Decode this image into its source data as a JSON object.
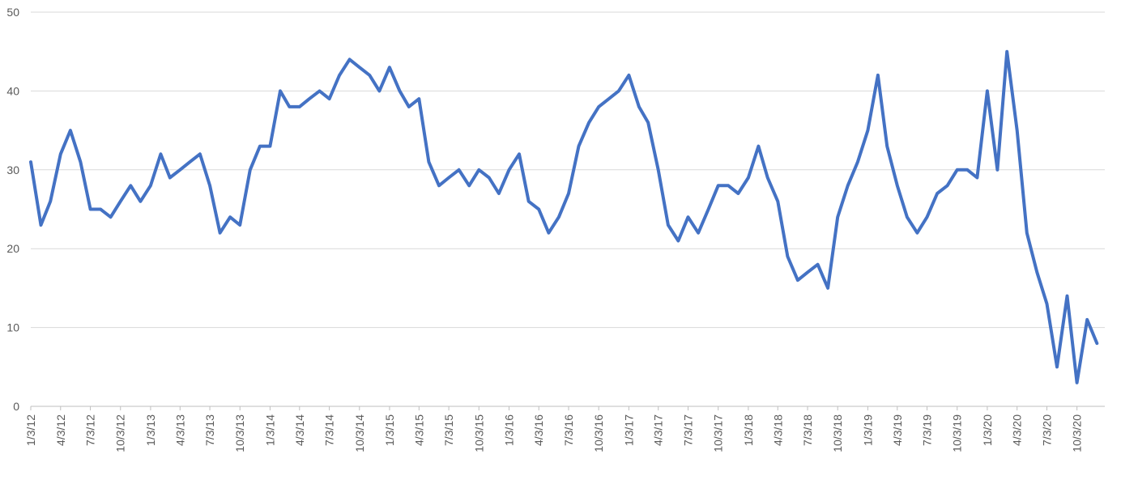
{
  "chart_data": {
    "type": "line",
    "title": "",
    "xlabel": "",
    "ylabel": "",
    "ylim": [
      0,
      50
    ],
    "y_ticks": [
      "0",
      "10",
      "20",
      "30",
      "40",
      "50"
    ],
    "x_ticks": [
      "1/3/12",
      "4/3/12",
      "7/3/12",
      "10/3/12",
      "1/3/13",
      "4/3/13",
      "7/3/13",
      "10/3/13",
      "1/3/14",
      "4/3/14",
      "7/3/14",
      "10/3/14",
      "1/3/15",
      "4/3/15",
      "7/3/15",
      "10/3/15",
      "1/3/16",
      "4/3/16",
      "7/3/16",
      "10/3/16",
      "1/3/17",
      "4/3/17",
      "7/3/17",
      "10/3/17",
      "1/3/18",
      "4/3/18",
      "7/3/18",
      "10/3/18",
      "1/3/19",
      "4/3/19",
      "7/3/19",
      "10/3/19",
      "1/3/20",
      "4/3/20",
      "7/3/20",
      "10/3/20"
    ],
    "grid": true,
    "legend": "none",
    "line_color": "#4472c4",
    "series": [
      {
        "x": [
          "1/3/12",
          "2/3/12",
          "3/3/12",
          "4/3/12",
          "5/3/12",
          "6/3/12",
          "7/3/12",
          "8/3/12",
          "9/3/12",
          "10/3/12",
          "11/3/12",
          "12/3/12",
          "1/3/13",
          "2/3/13",
          "3/3/13",
          "4/3/13",
          "5/3/13",
          "6/3/13",
          "7/3/13",
          "8/3/13",
          "9/3/13",
          "10/3/13",
          "11/3/13",
          "12/3/13",
          "1/3/14",
          "2/3/14",
          "3/3/14",
          "4/3/14",
          "5/3/14",
          "6/3/14",
          "7/3/14",
          "8/3/14",
          "9/3/14",
          "10/3/14",
          "11/3/14",
          "12/3/14",
          "1/3/15",
          "2/3/15",
          "3/3/15",
          "4/3/15",
          "5/3/15",
          "6/3/15",
          "7/3/15",
          "8/3/15",
          "9/3/15",
          "10/3/15",
          "11/3/15",
          "12/3/15",
          "1/3/16",
          "2/3/16",
          "3/3/16",
          "4/3/16",
          "5/3/16",
          "6/3/16",
          "7/3/16",
          "8/3/16",
          "9/3/16",
          "10/3/16",
          "11/3/16",
          "12/3/16",
          "1/3/17",
          "2/3/17",
          "3/3/17",
          "4/3/17",
          "5/3/17",
          "6/3/17",
          "7/3/17",
          "8/3/17",
          "9/3/17",
          "10/3/17",
          "11/3/17",
          "12/3/17",
          "1/3/18",
          "2/3/18",
          "3/3/18",
          "4/3/18",
          "5/3/18",
          "6/3/18",
          "7/3/18",
          "8/3/18",
          "9/3/18",
          "10/3/18",
          "11/3/18",
          "12/3/18",
          "1/3/19",
          "2/3/19",
          "3/3/19",
          "4/3/19",
          "5/3/19",
          "6/3/19",
          "7/3/19",
          "8/3/19",
          "9/3/19",
          "10/3/19",
          "11/3/19",
          "12/3/19",
          "1/3/20",
          "2/3/20",
          "3/3/20",
          "4/3/20",
          "5/3/20",
          "6/3/20",
          "7/3/20",
          "8/3/20",
          "9/3/20",
          "10/3/20",
          "11/3/20",
          "12/3/20"
        ],
        "values": [
          31,
          23,
          26,
          32,
          35,
          31,
          25,
          25,
          24,
          26,
          28,
          26,
          28,
          32,
          29,
          30,
          31,
          32,
          28,
          22,
          24,
          23,
          30,
          33,
          33,
          40,
          38,
          38,
          39,
          40,
          39,
          42,
          44,
          43,
          42,
          40,
          43,
          40,
          38,
          39,
          31,
          28,
          29,
          30,
          28,
          30,
          29,
          27,
          30,
          32,
          26,
          25,
          22,
          24,
          27,
          33,
          36,
          38,
          39,
          40,
          42,
          38,
          36,
          30,
          23,
          21,
          24,
          22,
          25,
          28,
          28,
          27,
          29,
          33,
          29,
          26,
          19,
          16,
          17,
          18,
          15,
          24,
          28,
          31,
          35,
          42,
          33,
          28,
          24,
          22,
          24,
          27,
          28,
          30,
          30,
          29,
          40,
          30,
          45,
          35,
          22,
          17,
          13,
          5,
          14,
          3,
          11,
          8
        ]
      }
    ]
  }
}
